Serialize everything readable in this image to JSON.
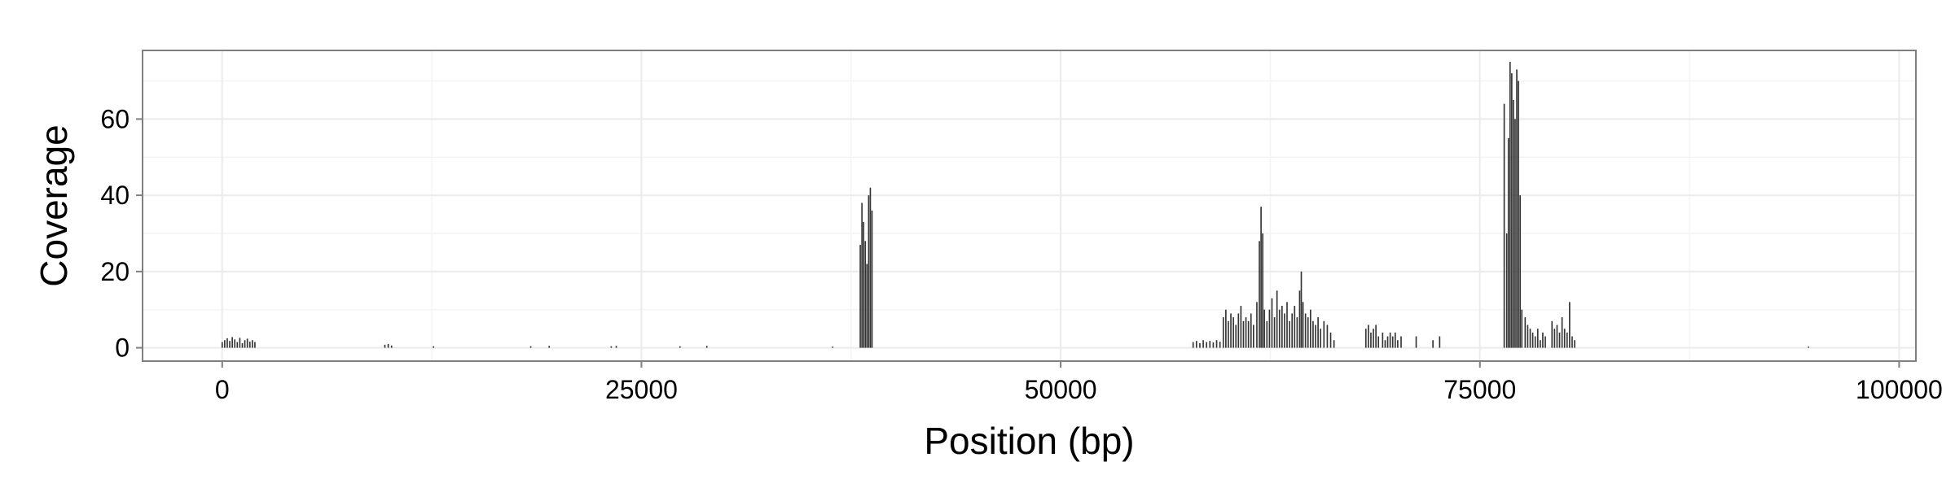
{
  "colors": {
    "bar": "#333333",
    "grid": "#ebebeb",
    "panel_border": "#7f7f7f",
    "tick": "#7f7f7f",
    "background": "#ffffff"
  },
  "chart_data": {
    "type": "bar",
    "title": "",
    "xlabel": "Position (bp)",
    "ylabel": "Coverage",
    "xlim": [
      -4750,
      101000
    ],
    "ylim": [
      -3.5,
      78
    ],
    "x_ticks": [
      0,
      25000,
      50000,
      75000,
      100000
    ],
    "x_tick_labels": [
      "0",
      "25000",
      "50000",
      "75000",
      "100000"
    ],
    "y_ticks": [
      0,
      20,
      40,
      60
    ],
    "y_tick_labels": [
      "0",
      "20",
      "40",
      "60"
    ],
    "grid": true,
    "legend": "none",
    "bin_width": 80,
    "points": [
      [
        0,
        1.5
      ],
      [
        150,
        2
      ],
      [
        300,
        2.5
      ],
      [
        450,
        1.8
      ],
      [
        600,
        2.8
      ],
      [
        750,
        2.2
      ],
      [
        900,
        1.5
      ],
      [
        1050,
        2.6
      ],
      [
        1200,
        1.2
      ],
      [
        1350,
        2
      ],
      [
        1500,
        2.4
      ],
      [
        1650,
        1.6
      ],
      [
        1800,
        2
      ],
      [
        1950,
        1.5
      ],
      [
        9700,
        0.8
      ],
      [
        9900,
        1
      ],
      [
        10100,
        0.6
      ],
      [
        12600,
        0.4
      ],
      [
        18400,
        0.4
      ],
      [
        19500,
        0.5
      ],
      [
        23200,
        0.4
      ],
      [
        23500,
        0.5
      ],
      [
        27300,
        0.4
      ],
      [
        28900,
        0.5
      ],
      [
        36400,
        0.3
      ],
      [
        38050,
        27
      ],
      [
        38150,
        38
      ],
      [
        38250,
        33
      ],
      [
        38350,
        28
      ],
      [
        38450,
        22
      ],
      [
        38550,
        40
      ],
      [
        38650,
        42
      ],
      [
        38750,
        36
      ],
      [
        57900,
        1.5
      ],
      [
        58100,
        1.8
      ],
      [
        58300,
        1.2
      ],
      [
        58500,
        2
      ],
      [
        58700,
        1.5
      ],
      [
        58900,
        1.8
      ],
      [
        59100,
        1.4
      ],
      [
        59300,
        2
      ],
      [
        59500,
        1.6
      ],
      [
        59700,
        8
      ],
      [
        59850,
        10
      ],
      [
        60000,
        7
      ],
      [
        60150,
        9
      ],
      [
        60300,
        8
      ],
      [
        60450,
        6
      ],
      [
        60600,
        9
      ],
      [
        60750,
        11
      ],
      [
        60900,
        7
      ],
      [
        61050,
        8
      ],
      [
        61200,
        7
      ],
      [
        61350,
        9
      ],
      [
        61500,
        6
      ],
      [
        61700,
        12
      ],
      [
        61850,
        28
      ],
      [
        61950,
        37
      ],
      [
        62050,
        30
      ],
      [
        62150,
        10
      ],
      [
        62300,
        7
      ],
      [
        62450,
        10
      ],
      [
        62600,
        13
      ],
      [
        62750,
        8
      ],
      [
        62900,
        15
      ],
      [
        63050,
        10
      ],
      [
        63200,
        11
      ],
      [
        63350,
        9
      ],
      [
        63500,
        12
      ],
      [
        63650,
        7
      ],
      [
        63800,
        9
      ],
      [
        63950,
        11
      ],
      [
        64100,
        8
      ],
      [
        64250,
        15
      ],
      [
        64350,
        20
      ],
      [
        64450,
        12
      ],
      [
        64600,
        9
      ],
      [
        64750,
        8
      ],
      [
        64900,
        10
      ],
      [
        65050,
        7
      ],
      [
        65200,
        6
      ],
      [
        65350,
        8
      ],
      [
        65500,
        5
      ],
      [
        65700,
        7
      ],
      [
        65900,
        6
      ],
      [
        66100,
        4
      ],
      [
        66300,
        2
      ],
      [
        68200,
        5
      ],
      [
        68350,
        6
      ],
      [
        68500,
        4
      ],
      [
        68650,
        5
      ],
      [
        68800,
        6
      ],
      [
        68950,
        3
      ],
      [
        69200,
        4
      ],
      [
        69350,
        2
      ],
      [
        69500,
        3
      ],
      [
        69650,
        4
      ],
      [
        69800,
        3
      ],
      [
        69950,
        4
      ],
      [
        70100,
        2
      ],
      [
        70300,
        3
      ],
      [
        71200,
        3
      ],
      [
        72200,
        2
      ],
      [
        72600,
        3
      ],
      [
        76450,
        64
      ],
      [
        76600,
        30
      ],
      [
        76700,
        55
      ],
      [
        76800,
        75
      ],
      [
        76900,
        72
      ],
      [
        77000,
        65
      ],
      [
        77100,
        60
      ],
      [
        77200,
        73
      ],
      [
        77300,
        70
      ],
      [
        77400,
        40
      ],
      [
        77500,
        10
      ],
      [
        77700,
        8
      ],
      [
        77850,
        6
      ],
      [
        78000,
        5
      ],
      [
        78150,
        4
      ],
      [
        78300,
        3
      ],
      [
        78450,
        5
      ],
      [
        78600,
        2
      ],
      [
        78750,
        4
      ],
      [
        78900,
        3
      ],
      [
        79300,
        7
      ],
      [
        79450,
        5
      ],
      [
        79600,
        6
      ],
      [
        79750,
        4
      ],
      [
        79900,
        8
      ],
      [
        80050,
        5
      ],
      [
        80200,
        4
      ],
      [
        80350,
        12
      ],
      [
        80500,
        3
      ],
      [
        80650,
        2
      ],
      [
        94600,
        0.3
      ]
    ]
  }
}
